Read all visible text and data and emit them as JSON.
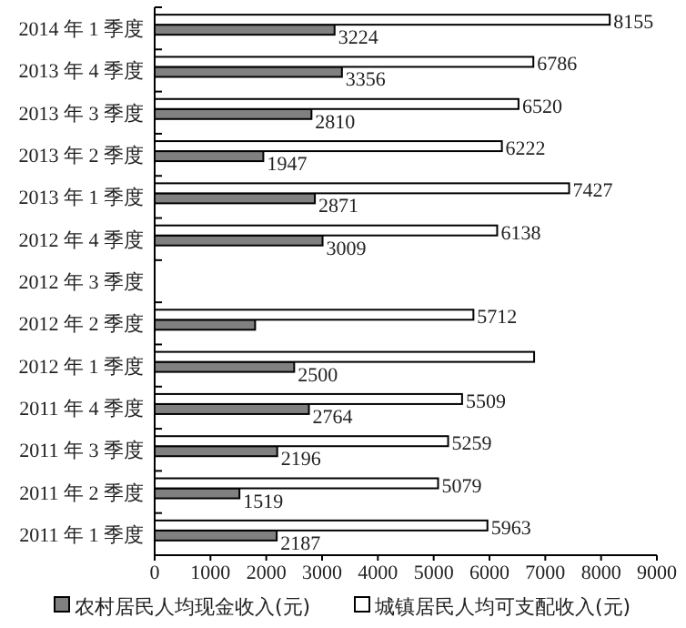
{
  "chart_data": {
    "type": "bar",
    "orientation": "horizontal",
    "categories": [
      "2014 年 1 季度",
      "2013 年 4 季度",
      "2013 年 3 季度",
      "2013 年 2 季度",
      "2013 年 1 季度",
      "2012 年 4 季度",
      "2012 年 3 季度",
      "2012 年 2 季度",
      "2012 年 1 季度",
      "2011 年 4 季度",
      "2011 年 3 季度",
      "2011 年 2 季度",
      "2011 年 1 季度"
    ],
    "series": [
      {
        "name": "农村居民人均现金收入(元)",
        "color": "#808080",
        "values": [
          3224,
          3356,
          2810,
          1947,
          2871,
          3009,
          null,
          1800,
          2500,
          2764,
          2196,
          1519,
          2187
        ],
        "value_labels": [
          "3224",
          "3356",
          "2810",
          "1947",
          "2871",
          "3009",
          null,
          null,
          "2500",
          "2764",
          "2196",
          "1519",
          "2187"
        ]
      },
      {
        "name": "城镇居民人均可支配收入(元)",
        "color": "#ffffff",
        "values": [
          8155,
          6786,
          6520,
          6222,
          7427,
          6138,
          null,
          5712,
          6800,
          5509,
          5259,
          5079,
          5963
        ],
        "value_labels": [
          "8155",
          "6786",
          "6520",
          "6222",
          "7427",
          "6138",
          null,
          "5712",
          null,
          "5509",
          "5259",
          "5079",
          "5963"
        ]
      }
    ],
    "xlim": [
      0,
      9000
    ],
    "xticks": [
      0,
      1000,
      2000,
      3000,
      4000,
      5000,
      6000,
      7000,
      8000,
      9000
    ],
    "legend": "bottom"
  }
}
